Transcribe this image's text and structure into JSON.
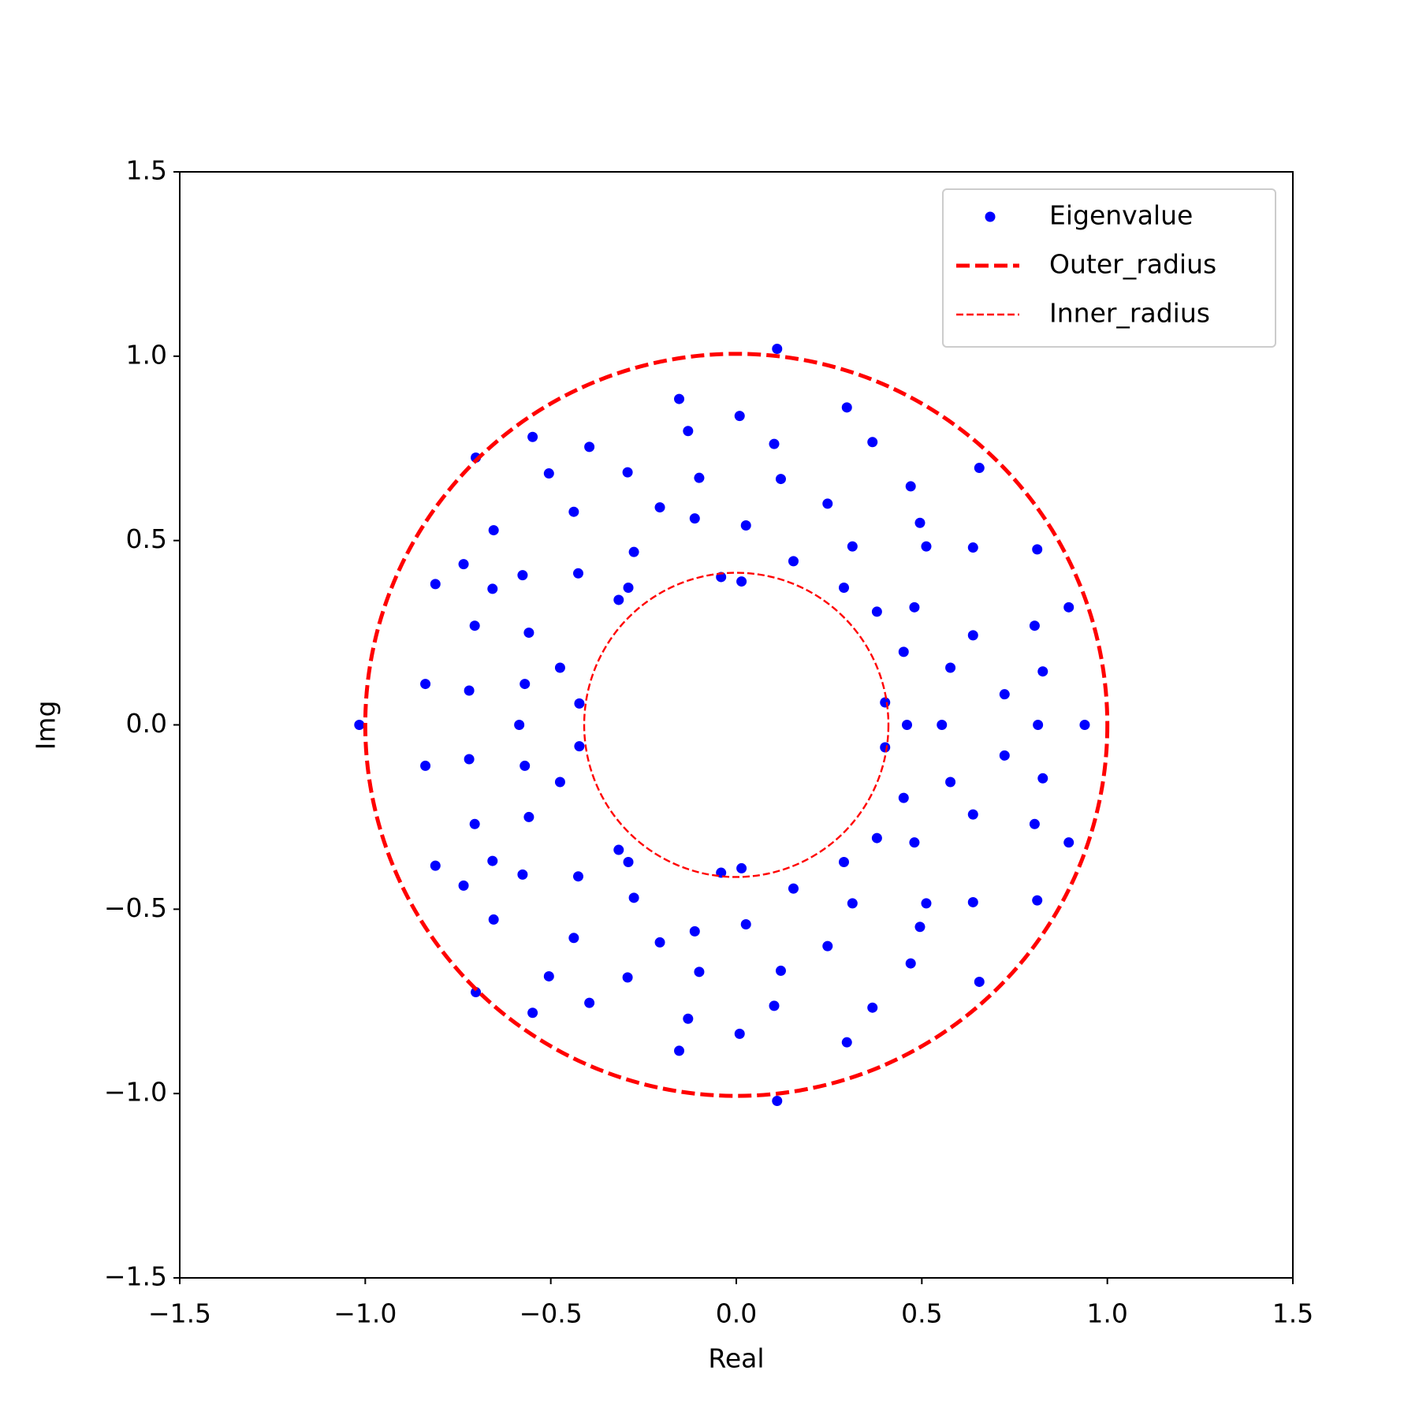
{
  "chart_data": {
    "type": "scatter",
    "xlabel": "Real",
    "ylabel": "Img",
    "xlim": [
      -1.5,
      1.5
    ],
    "ylim": [
      -1.5,
      1.5
    ],
    "xticks": [
      {
        "value": -1.5,
        "label": "−1.5"
      },
      {
        "value": -1.0,
        "label": "−1.0"
      },
      {
        "value": -0.5,
        "label": "−0.5"
      },
      {
        "value": 0,
        "label": "0.0"
      },
      0.5,
      {
        "value": 1.0,
        "label": "1.0"
      },
      1.5
    ],
    "yticks": [
      {
        "value": -1.5,
        "label": "−1.5"
      },
      {
        "value": -1.0,
        "label": "−1.0"
      },
      {
        "value": -0.5,
        "label": "−0.5"
      },
      {
        "value": 0,
        "label": "0.0"
      },
      0.5,
      {
        "value": 1.0,
        "label": "1.0"
      },
      1.5
    ],
    "grid": false,
    "legend": "upper right",
    "series": [
      {
        "name": "Eigenvalue",
        "type": "scatter",
        "color": "#0000ff",
        "x": [
          0.11,
          -0.154,
          0.009,
          0.298,
          -0.13,
          -0.549,
          -0.396,
          0.367,
          0.102,
          -0.702,
          -0.505,
          -0.293,
          -0.1,
          0.12,
          0.47,
          0.655,
          -0.206,
          -0.438,
          -0.112,
          0.246,
          0.495,
          0.026,
          -0.654,
          0.313,
          0.512,
          0.638,
          0.811,
          -0.276,
          0.154,
          -0.735,
          -0.576,
          -0.426,
          -0.041,
          0.014,
          -0.811,
          -0.291,
          0.29,
          -0.657,
          -0.317,
          0.379,
          0.48,
          0.896,
          -0.705,
          0.804,
          -0.559,
          0.638,
          0.451,
          -0.475,
          0.577,
          0.826,
          -0.838,
          -0.57,
          -0.72,
          0.723,
          -0.423,
          0.401,
          -1.016,
          -0.585,
          0.46,
          0.554,
          0.813,
          0.939,
          0.11,
          -0.154,
          0.009,
          0.298,
          -0.13,
          -0.549,
          -0.396,
          0.367,
          0.102,
          -0.702,
          -0.505,
          -0.293,
          -0.1,
          0.12,
          0.47,
          0.655,
          -0.206,
          -0.438,
          -0.112,
          0.246,
          0.495,
          0.026,
          -0.654,
          0.313,
          0.512,
          0.638,
          0.811,
          -0.276,
          0.154,
          -0.735,
          -0.576,
          -0.426,
          -0.041,
          0.014,
          -0.811,
          -0.291,
          0.29,
          -0.657,
          -0.317,
          0.379,
          0.48,
          0.896,
          -0.705,
          0.804,
          -0.559,
          0.638,
          0.451,
          -0.475,
          0.577,
          0.826,
          -0.838,
          -0.57,
          -0.72,
          0.723,
          -0.423,
          0.401
        ],
        "values": [
          1.02,
          0.884,
          0.838,
          0.861,
          0.797,
          0.781,
          0.754,
          0.767,
          0.762,
          0.725,
          0.682,
          0.685,
          0.67,
          0.667,
          0.647,
          0.697,
          0.59,
          0.578,
          0.56,
          0.6,
          0.548,
          0.541,
          0.528,
          0.484,
          0.484,
          0.481,
          0.476,
          0.469,
          0.444,
          0.436,
          0.406,
          0.411,
          0.401,
          0.389,
          0.382,
          0.372,
          0.372,
          0.369,
          0.339,
          0.307,
          0.319,
          0.319,
          0.269,
          0.269,
          0.25,
          0.243,
          0.198,
          0.155,
          0.155,
          0.145,
          0.111,
          0.111,
          0.093,
          0.083,
          0.058,
          0.061,
          0,
          0,
          0,
          0,
          0,
          0,
          -1.02,
          -0.884,
          -0.838,
          -0.861,
          -0.797,
          -0.781,
          -0.754,
          -0.767,
          -0.762,
          -0.725,
          -0.682,
          -0.685,
          -0.67,
          -0.667,
          -0.647,
          -0.697,
          -0.59,
          -0.578,
          -0.56,
          -0.6,
          -0.548,
          -0.541,
          -0.528,
          -0.484,
          -0.484,
          -0.481,
          -0.476,
          -0.469,
          -0.444,
          -0.436,
          -0.406,
          -0.411,
          -0.401,
          -0.389,
          -0.382,
          -0.372,
          -0.372,
          -0.369,
          -0.339,
          -0.307,
          -0.319,
          -0.319,
          -0.269,
          -0.269,
          -0.25,
          -0.243,
          -0.198,
          -0.155,
          -0.155,
          -0.145,
          -0.111,
          -0.111,
          -0.093,
          -0.083,
          -0.058,
          -0.061
        ]
      },
      {
        "name": "Outer_radius",
        "type": "circle",
        "color": "#ff0000",
        "center": [
          0,
          0
        ],
        "radius": 1.0,
        "linestyle": "thick-dashed"
      },
      {
        "name": "Inner_radius",
        "type": "circle",
        "color": "#ff0000",
        "center": [
          0,
          0
        ],
        "radius": 0.41,
        "linestyle": "thin-dashed"
      }
    ]
  }
}
